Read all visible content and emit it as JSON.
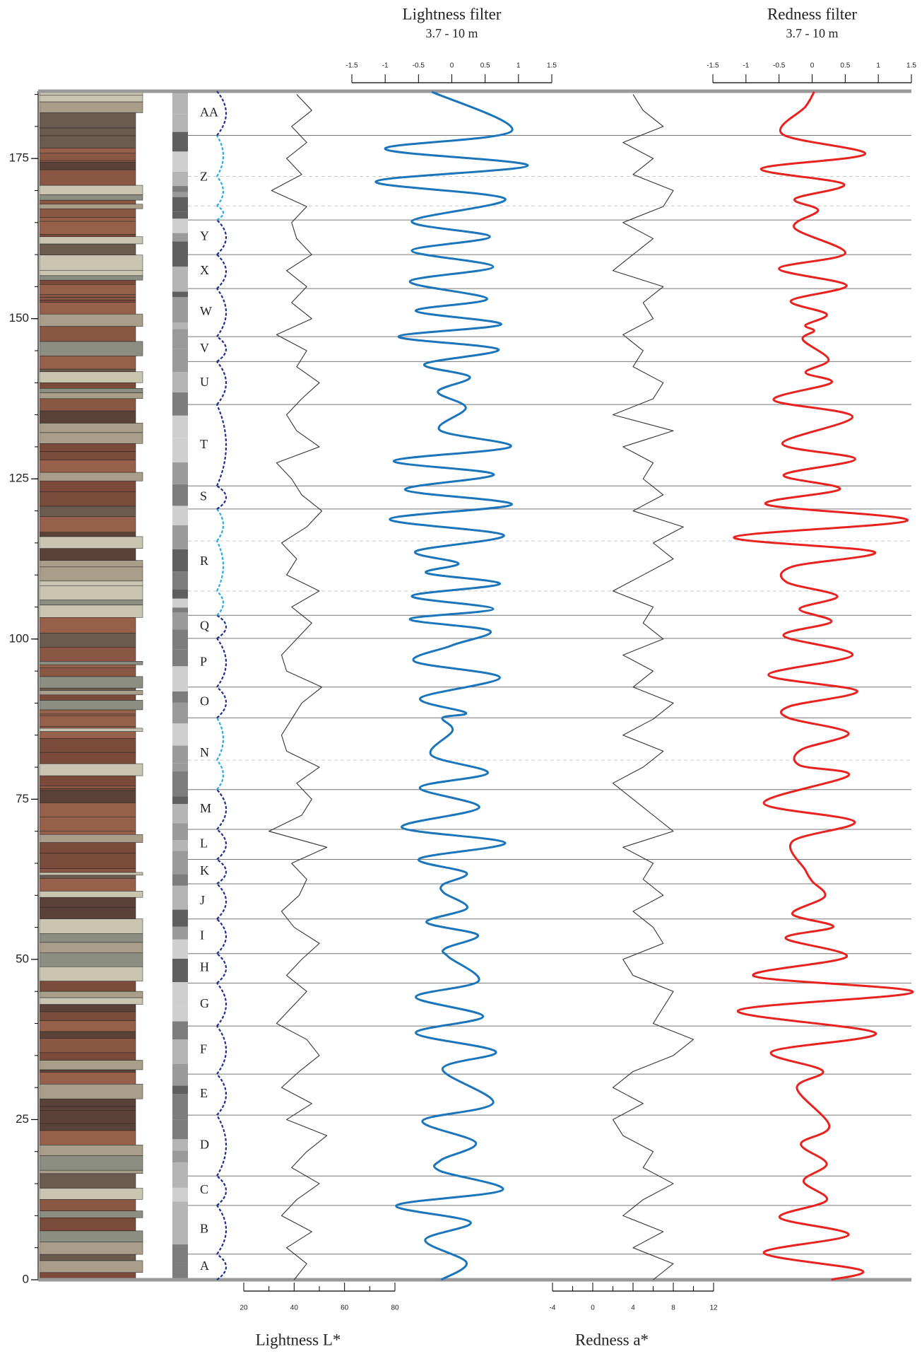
{
  "chart_data": [
    {
      "type": "column",
      "ylim": [
        0,
        185.5
      ],
      "yticks": [
        0,
        25,
        50,
        75,
        100,
        125,
        150,
        175
      ],
      "minor_ystep": 5
    },
    {
      "type": "cycles",
      "boundaries": [
        4.0,
        11.6,
        16.2,
        25.7,
        32.1,
        39.6,
        46.3,
        50.9,
        56.3,
        61.8,
        65.6,
        70.3,
        76.5,
        87.7,
        92.5,
        100.1,
        103.7,
        120.3,
        123.9,
        136.6,
        143.3,
        147.2,
        154.7,
        160.0,
        165.4,
        178.6
      ],
      "sub_boundaries": [
        81.1,
        107.5,
        115.3,
        167.6,
        172.2
      ],
      "labels": [
        "A",
        "B",
        "C",
        "D",
        "E",
        "F",
        "G",
        "H",
        "I",
        "J",
        "K",
        "L",
        "M",
        "N",
        "O",
        "P",
        "Q",
        "R",
        "S",
        "T",
        "U",
        "V",
        "W",
        "X",
        "Y",
        "Z",
        "AA"
      ]
    },
    {
      "type": "line",
      "xlabel": "Lightness L*",
      "color": "#333333",
      "smooth": false,
      "xlim": [
        20,
        80
      ],
      "xticks": [
        20,
        40,
        60,
        80
      ],
      "minor_xticks": [
        30,
        50,
        70
      ],
      "depth": [
        0,
        2.5,
        5,
        7.5,
        10,
        12.5,
        15,
        17.5,
        20,
        22.5,
        25,
        27.5,
        30,
        32.5,
        35,
        37.5,
        40,
        42.5,
        45,
        47.5,
        50,
        52.5,
        55,
        57.5,
        60,
        62.5,
        65,
        67.5,
        70,
        72.5,
        75,
        77.5,
        80,
        82.5,
        85,
        87.5,
        90,
        92.5,
        95,
        97.5,
        100,
        102.5,
        105,
        107.5,
        110,
        112.5,
        115,
        117.5,
        120,
        122.5,
        125,
        127.5,
        130,
        132.5,
        135,
        137.5,
        140,
        142.5,
        145,
        147.5,
        150,
        152.5,
        155,
        157.5,
        160,
        162.5,
        165,
        167.5,
        170,
        172.5,
        175,
        177.5,
        180,
        182.5,
        185
      ],
      "values": [
        40,
        45,
        37,
        47,
        35,
        41,
        50,
        39,
        45,
        53,
        37,
        47,
        35,
        42,
        50,
        45,
        33,
        39,
        45,
        37,
        43,
        50,
        40,
        35,
        42,
        45,
        39,
        53,
        30,
        43,
        47,
        41,
        50,
        37,
        35,
        39,
        43,
        51,
        37,
        35,
        41,
        47,
        39,
        50,
        37,
        41,
        35,
        45,
        51,
        43,
        39,
        33,
        50,
        41,
        37,
        43,
        50,
        41,
        45,
        33,
        47,
        39,
        45,
        37,
        47,
        41,
        39,
        45,
        31,
        43,
        37,
        45,
        39,
        47,
        41
      ]
    },
    {
      "type": "line",
      "title": "Lightness filter",
      "subtitle": "3.7 - 10 m",
      "color": "#1b75bb",
      "smooth": true,
      "xlim": [
        -1.5,
        1.5
      ],
      "xticks": [
        -1.5,
        -1,
        -0.5,
        0,
        0.5,
        1,
        1.5
      ],
      "depth": [
        185.4,
        179.3,
        176.5,
        173.9,
        171.4,
        168.7,
        165.2,
        162.8,
        160.6,
        158.1,
        155.8,
        153.1,
        151.2,
        149.1,
        147.2,
        145.2,
        142.9,
        140.9,
        138.6,
        136.1,
        132.6,
        130.0,
        127.8,
        125.7,
        123.3,
        121.0,
        118.7,
        116.2,
        113.7,
        111.8,
        110.3,
        108.6,
        106.7,
        104.7,
        103.1,
        101.3,
        99.0,
        96.5,
        94.0,
        90.8,
        88.5,
        87.7,
        85.7,
        81.9,
        79.1,
        76.8,
        73.7,
        70.6,
        68.2,
        65.7,
        63.5,
        61.7,
        60.4,
        58.0,
        55.8,
        53.8,
        51.7,
        50.4,
        46.6,
        44.1,
        41.1,
        38.5,
        35.6,
        32.9,
        27.6,
        24.8,
        21.4,
        18.7,
        17.0,
        14.0,
        11.6,
        9.0,
        6.2,
        2.7,
        0
      ],
      "values": [
        -0.3,
        0.9,
        -1.0,
        1.14,
        -1.14,
        0.8,
        -0.6,
        0.57,
        -0.6,
        0.62,
        -0.63,
        0.53,
        -0.54,
        0.74,
        -0.8,
        0.7,
        -0.41,
        0.27,
        -0.21,
        0.21,
        -0.18,
        0.88,
        -0.87,
        0.63,
        -0.7,
        0.9,
        -0.93,
        0.78,
        -0.54,
        0.1,
        -0.38,
        0.72,
        -0.6,
        0.62,
        -0.63,
        0.57,
        0,
        -0.56,
        0.72,
        -0.47,
        0.21,
        -0.14,
        0.01,
        -0.31,
        0.54,
        -0.48,
        0.41,
        -0.75,
        0.8,
        -0.49,
        0.22,
        -0.13,
        -0.12,
        0.23,
        -0.38,
        0.39,
        -0.1,
        -0.05,
        0.4,
        -0.54,
        0.47,
        -0.54,
        0.66,
        -0.14,
        0.62,
        -0.44,
        0.36,
        -0.16,
        -0.18,
        0.76,
        -0.83,
        0.28,
        -0.4,
        0.22,
        -0.16
      ]
    },
    {
      "type": "line",
      "xlabel": "Redness a*",
      "color": "#333333",
      "smooth": false,
      "xlim": [
        -4,
        12
      ],
      "xticks": [
        -4,
        0,
        4,
        8,
        12
      ],
      "minor_xticks": [
        -2,
        2,
        6,
        10
      ],
      "depth": [
        0,
        2.5,
        5,
        7.5,
        10,
        12.5,
        15,
        17.5,
        20,
        22.5,
        25,
        27.5,
        30,
        32.5,
        35,
        37.5,
        40,
        42.5,
        45,
        47.5,
        50,
        52.5,
        55,
        57.5,
        60,
        62.5,
        65,
        67.5,
        70,
        72.5,
        75,
        77.5,
        80,
        82.5,
        85,
        87.5,
        90,
        92.5,
        95,
        97.5,
        100,
        102.5,
        105,
        107.5,
        110,
        112.5,
        115,
        117.5,
        120,
        122.5,
        125,
        127.5,
        130,
        132.5,
        135,
        137.5,
        140,
        142.5,
        145,
        147.5,
        150,
        152.5,
        155,
        157.5,
        160,
        162.5,
        165,
        167.5,
        170,
        172.5,
        175,
        177.5,
        180,
        182.5,
        185
      ],
      "values": [
        6,
        8,
        4,
        7,
        3,
        5,
        8,
        5,
        6,
        3,
        2,
        5,
        2,
        4,
        8,
        10,
        6,
        7,
        8,
        4,
        3,
        7,
        6,
        4,
        7,
        5,
        6,
        3,
        8,
        6,
        4,
        2,
        5,
        7,
        3,
        6,
        8,
        4,
        6,
        3,
        7,
        5,
        6,
        2,
        5,
        8,
        6,
        9,
        4,
        7,
        5,
        6,
        3,
        8,
        2,
        6,
        7,
        4,
        5,
        3,
        6,
        5,
        7,
        2,
        4,
        6,
        3,
        7,
        8,
        4,
        6,
        3,
        7,
        5,
        4
      ]
    },
    {
      "type": "line",
      "title": "Redness filter",
      "subtitle": "3.7 - 10 m",
      "color": "#e8231f",
      "smooth": true,
      "xlim": [
        -1.5,
        1.5
      ],
      "xticks": [
        -1.5,
        -1,
        -0.5,
        0,
        0.5,
        1,
        1.5
      ],
      "depth": [
        185.4,
        183.1,
        178.8,
        175.7,
        173.4,
        171.0,
        168.7,
        166.9,
        164.2,
        160.2,
        157.8,
        155.2,
        152.8,
        150.7,
        149.0,
        148.1,
        146.7,
        143.6,
        141.6,
        140.0,
        137.3,
        134.7,
        130.5,
        128.1,
        125.6,
        123.4,
        121.0,
        118.5,
        115.9,
        113.6,
        111.3,
        108.9,
        106.7,
        104.7,
        102.7,
        100.5,
        97.5,
        94.4,
        91.9,
        89.5,
        87.7,
        85.3,
        82.7,
        80.3,
        78.7,
        74.4,
        71.5,
        68.4,
        63.9,
        62.2,
        59.8,
        57.1,
        55.1,
        53.3,
        50.4,
        47.4,
        44.9,
        42.0,
        38.5,
        35.6,
        32.6,
        29.9,
        24.0,
        21.2,
        18.1,
        15.4,
        12.4,
        9.7,
        7.0,
        4.2,
        1.5,
        0
      ],
      "values": [
        0.03,
        -0.1,
        -0.45,
        0.8,
        -0.77,
        0.48,
        -0.26,
        0.09,
        -0.27,
        0.5,
        -0.5,
        0.52,
        -0.32,
        0.22,
        -0.1,
        0.03,
        -0.14,
        0.25,
        -0.1,
        0.29,
        -0.58,
        0.61,
        -0.45,
        0.65,
        -0.43,
        0.42,
        -0.69,
        1.44,
        -1.18,
        0.94,
        -0.3,
        -0.39,
        0.38,
        -0.19,
        0.29,
        -0.43,
        0.61,
        -0.66,
        0.68,
        -0.34,
        -0.36,
        0.55,
        -0.17,
        -0.19,
        0.55,
        -0.73,
        0.64,
        -0.3,
        -0.1,
        0,
        0.19,
        -0.3,
        0.32,
        -0.4,
        0.52,
        -0.88,
        1.52,
        -1.12,
        0.96,
        -0.61,
        0.16,
        -0.23,
        0.26,
        -0.17,
        0.22,
        -0.13,
        0.22,
        -0.49,
        0.55,
        -0.73,
        0.74,
        0.29
      ]
    }
  ]
}
